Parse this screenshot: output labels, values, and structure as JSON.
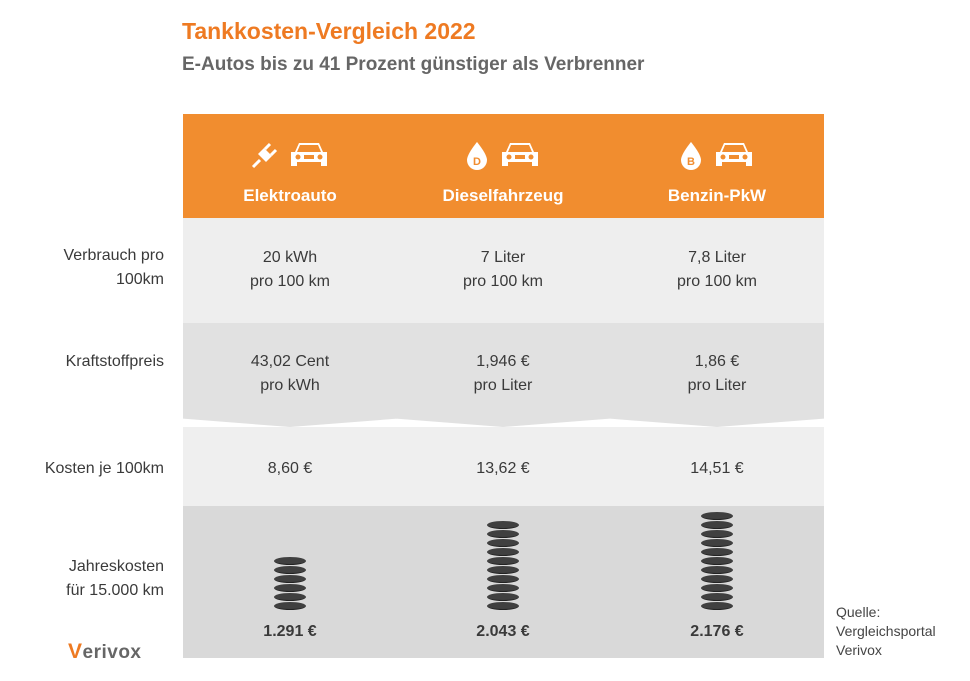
{
  "title": "Tankkosten-Vergleich 2022",
  "subtitle": "E-Autos bis zu 41 Prozent günstiger als Verbrenner",
  "row_labels": {
    "verbrauch": "Verbrauch pro\n100km",
    "preis": "Kraftstoffpreis",
    "kosten": "Kosten je 100km",
    "jahr": "Jahreskosten\nfür 15.000 km"
  },
  "columns": [
    {
      "name": "Elektroauto",
      "icon": "plug-icon",
      "badge": "",
      "verbrauch": "20 kWh\npro 100 km",
      "preis": "43,02 Cent\npro kWh",
      "kosten": "8,60 €",
      "jahr": "1.291 €",
      "coin_stack": 6
    },
    {
      "name": "Dieselfahrzeug",
      "icon": "fuel-drop-icon",
      "badge": "D",
      "verbrauch": "7 Liter\npro 100 km",
      "preis": "1,946 €\npro Liter",
      "kosten": "13,62 €",
      "jahr": "2.043 €",
      "coin_stack": 10
    },
    {
      "name": "Benzin-PkW",
      "icon": "fuel-drop-icon",
      "badge": "B",
      "verbrauch": "7,8 Liter\npro 100 km",
      "preis": "1,86  €\npro Liter",
      "kosten": "14,51 €",
      "jahr": "2.176 €",
      "coin_stack": 11
    }
  ],
  "logo": {
    "mark": "V",
    "text": "erivox"
  },
  "source": "Quelle:\nVergleichsportal\nVerivox",
  "colors": {
    "accent": "#f18d2f",
    "title": "#ee7a22"
  }
}
